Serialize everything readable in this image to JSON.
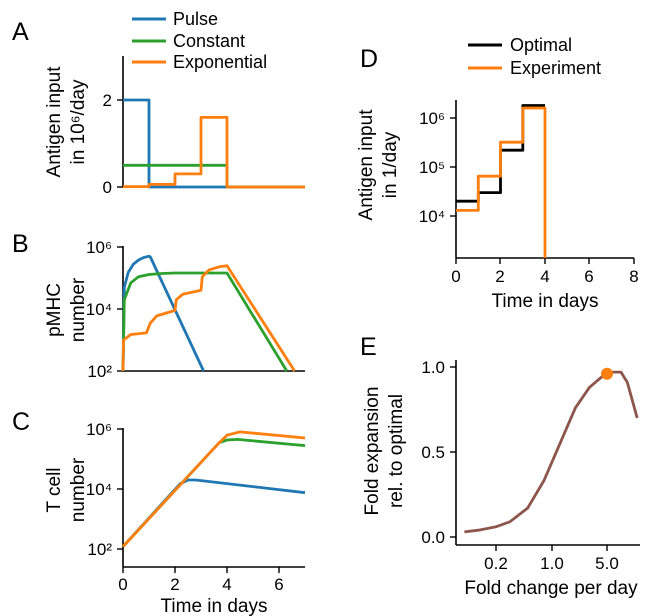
{
  "colors": {
    "pulse": "#1f77b4",
    "constant": "#2ca02c",
    "exponential": "#ff7f0e",
    "optimal": "#000000",
    "experiment": "#ff7f0e",
    "e_curve": "#8c564b",
    "e_marker": "#ff7f0e"
  },
  "panels": {
    "A": {
      "letter": "A",
      "ylabel_line1": "Antigen input",
      "ylabel_line2": "in 10⁶/day"
    },
    "B": {
      "letter": "B",
      "ylabel_line1": "pMHC",
      "ylabel_line2": "number"
    },
    "C": {
      "letter": "C",
      "ylabel_line1": "T cell",
      "ylabel_line2": "number",
      "xlabel": "Time in days"
    },
    "D": {
      "letter": "D",
      "ylabel_line1": "Antigen input",
      "ylabel_line2": "in 1/day",
      "xlabel": "Time in days"
    },
    "E": {
      "letter": "E",
      "ylabel_line1": "Fold expansion",
      "ylabel_line2": "rel. to optimal",
      "xlabel": "Fold change per day"
    }
  },
  "legend_left": [
    "Pulse",
    "Constant",
    "Exponential"
  ],
  "legend_right": [
    "Optimal",
    "Experiment"
  ],
  "chart_data": [
    {
      "panel": "A",
      "type": "line",
      "xlim": [
        0,
        7
      ],
      "ylim": [
        0,
        3
      ],
      "yticks": [
        "0",
        "2"
      ],
      "series": [
        {
          "name": "Pulse",
          "x": [
            0,
            1,
            1,
            7
          ],
          "y": [
            2,
            2,
            0,
            0
          ]
        },
        {
          "name": "Constant",
          "x": [
            0,
            4,
            4,
            7
          ],
          "y": [
            0.5,
            0.5,
            0,
            0
          ]
        },
        {
          "name": "Exponential",
          "x": [
            0,
            1,
            1,
            2,
            2,
            3,
            3,
            4,
            4,
            7
          ],
          "y": [
            0.01,
            0.01,
            0.06,
            0.06,
            0.3,
            0.3,
            1.6,
            1.6,
            0,
            0
          ]
        }
      ]
    },
    {
      "panel": "B",
      "type": "line",
      "yscale": "log",
      "xlim": [
        0,
        7
      ],
      "ylim": [
        100,
        1000000
      ],
      "yticks": [
        "10²",
        "10⁴",
        "10⁶"
      ],
      "series": [
        {
          "name": "Pulse",
          "x": [
            0,
            0.05,
            0.2,
            0.4,
            0.6,
            0.8,
            1.0,
            1.05,
            3.1
          ],
          "y": [
            100,
            50000,
            150000,
            280000,
            380000,
            460000,
            500000,
            480000,
            100
          ]
        },
        {
          "name": "Constant",
          "x": [
            0,
            0.05,
            0.3,
            0.6,
            1.0,
            1.5,
            2.0,
            4.0,
            6.3
          ],
          "y": [
            100,
            20000,
            70000,
            110000,
            130000,
            140000,
            145000,
            145000,
            100
          ]
        },
        {
          "name": "Exponential",
          "x": [
            0,
            0.02,
            0.3,
            0.9,
            1.05,
            1.3,
            2.0,
            2.05,
            2.3,
            3.0,
            3.05,
            3.3,
            3.7,
            4.0,
            6.6
          ],
          "y": [
            100,
            1000,
            1500,
            1700,
            3500,
            6000,
            9000,
            20000,
            30000,
            40000,
            110000,
            180000,
            230000,
            250000,
            100
          ]
        }
      ]
    },
    {
      "panel": "C",
      "type": "line",
      "yscale": "log",
      "xlim": [
        0,
        7
      ],
      "ylim": [
        100,
        1000000
      ],
      "xticks": [
        "0",
        "2",
        "4",
        "6"
      ],
      "yticks": [
        "10²",
        "10⁴",
        "10⁶"
      ],
      "series": [
        {
          "name": "Pulse",
          "x": [
            0,
            2.2,
            2.5,
            2.8,
            7
          ],
          "y": [
            120,
            15000,
            20000,
            20000,
            7500
          ]
        },
        {
          "name": "Constant",
          "x": [
            0,
            3.7,
            4.0,
            4.4,
            7
          ],
          "y": [
            120,
            350000,
            430000,
            450000,
            280000
          ]
        },
        {
          "name": "Exponential",
          "x": [
            0,
            3.7,
            4.0,
            4.5,
            7
          ],
          "y": [
            120,
            350000,
            620000,
            800000,
            500000
          ]
        }
      ]
    },
    {
      "panel": "D",
      "type": "line",
      "yscale": "log",
      "xlim": [
        0,
        8
      ],
      "ylim": [
        1000,
        5000000
      ],
      "xticks": [
        "0",
        "2",
        "4",
        "6",
        "8"
      ],
      "yticks": [
        "10⁴",
        "10⁵",
        "10⁶"
      ],
      "series": [
        {
          "name": "Optimal",
          "x": [
            0,
            1,
            1,
            2,
            2,
            3,
            3,
            4
          ],
          "y": [
            20000,
            20000,
            30000,
            30000,
            220000,
            220000,
            1800000,
            1800000
          ]
        },
        {
          "name": "Experiment",
          "x": [
            0,
            1,
            1,
            2,
            2,
            3,
            3,
            4,
            4
          ],
          "y": [
            13000,
            13000,
            65000,
            65000,
            320000,
            320000,
            1600000,
            1600000,
            1000
          ]
        }
      ]
    },
    {
      "panel": "E",
      "type": "line",
      "xscale": "log",
      "xlim": [
        0.08,
        12
      ],
      "ylim": [
        0,
        1.05
      ],
      "xticks": [
        "0.2",
        "1.0",
        "5.0"
      ],
      "yticks": [
        "0.0",
        "0.5",
        "1.0"
      ],
      "series": [
        {
          "name": "",
          "x": [
            0.08,
            0.12,
            0.2,
            0.3,
            0.5,
            0.8,
            1.2,
            2.0,
            3.0,
            4.5,
            6.0,
            7.5,
            9.0,
            12.0
          ],
          "y": [
            0.03,
            0.04,
            0.06,
            0.09,
            0.17,
            0.33,
            0.52,
            0.76,
            0.88,
            0.95,
            0.97,
            0.97,
            0.91,
            0.7
          ]
        }
      ],
      "marker": {
        "x": 5.0,
        "y": 0.96
      }
    }
  ]
}
